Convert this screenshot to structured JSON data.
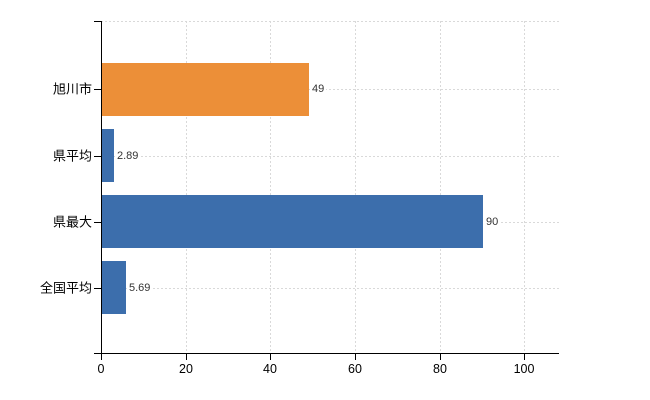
{
  "chart_data": {
    "type": "bar",
    "orientation": "horizontal",
    "categories": [
      "旭川市",
      "県平均",
      "県最大",
      "全国平均"
    ],
    "values": [
      49,
      2.89,
      90,
      5.69
    ],
    "value_labels": [
      "49",
      "2.89",
      "90",
      "5.69"
    ],
    "series": [
      {
        "name": "value",
        "values": [
          49,
          2.89,
          90,
          5.69
        ],
        "colors": [
          "#EC8F38",
          "#3C6EAC",
          "#3C6EAC",
          "#3C6EAC"
        ]
      }
    ],
    "xlabel": "",
    "ylabel": "",
    "x_axis": {
      "tick_labels": [
        "0",
        "20",
        "40",
        "60",
        "80",
        "100"
      ],
      "tick_values": [
        0,
        20,
        40,
        60,
        80,
        100
      ],
      "min": 0,
      "max": 108
    },
    "legend": {
      "shown": false
    },
    "grid": {
      "shown": true,
      "line_style": "dashed",
      "color": "#d9d9d9"
    },
    "colors": {
      "highlight_bar": "#EC8F38",
      "default_bar": "#3C6EAC",
      "axis": "#000000",
      "value_label_text": "#333333",
      "category_label_text": "#000000",
      "background": "#ffffff"
    }
  }
}
